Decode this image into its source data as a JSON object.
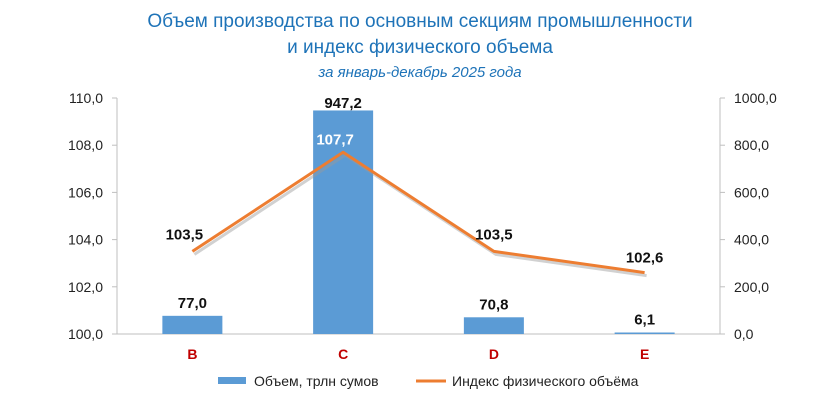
{
  "chart_data": {
    "type": "bar",
    "title": "Объем производства по основным секциям промышленности",
    "title_line2": "и индекс физического объема",
    "subtitle": "за январь-декабрь 2025 года",
    "categories": [
      "B",
      "C",
      "D",
      "E"
    ],
    "series": [
      {
        "name": "Объем, трлн сумов",
        "type": "bar",
        "axis": "right",
        "values": [
          77.0,
          947.2,
          70.8,
          6.1
        ],
        "labels": [
          "77,0",
          "947,2",
          "70,8",
          "6,1"
        ]
      },
      {
        "name": "Индекс физического объёма",
        "type": "line",
        "axis": "left",
        "values": [
          103.5,
          107.7,
          103.5,
          102.6
        ],
        "labels": [
          "103,5",
          "107,7",
          "103,5",
          "102,6"
        ]
      }
    ],
    "y_left": {
      "ylim": [
        100,
        110
      ],
      "ticks": [
        "100,0",
        "102,0",
        "104,0",
        "106,0",
        "108,0",
        "110,0"
      ]
    },
    "y_right": {
      "ylim": [
        0,
        1000
      ],
      "ticks": [
        "0,0",
        "200,0",
        "400,0",
        "600,0",
        "800,0",
        "1000,0"
      ]
    },
    "grid": false,
    "legend_position": "bottom",
    "colors": {
      "bar": "#5b9bd5",
      "line": "#ed7d31",
      "title": "#1e73b8",
      "category": "#c00000"
    }
  }
}
